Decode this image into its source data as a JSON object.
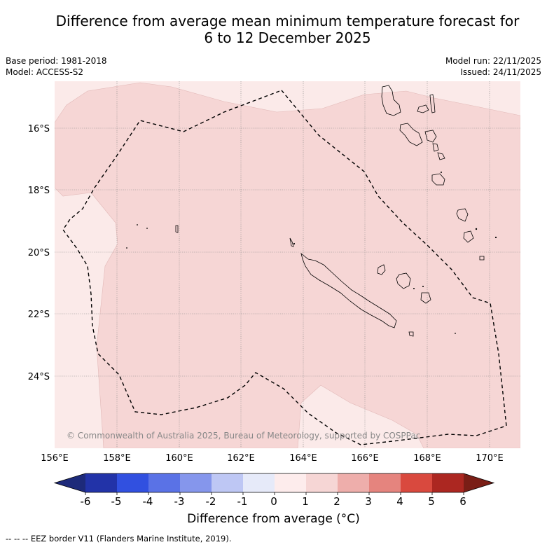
{
  "title": {
    "line1": "Difference from average mean minimum temperature forecast for",
    "line2": "6 to 12 December 2025"
  },
  "meta": {
    "base_period": "Base period: 1981-2018",
    "model": "Model: ACCESS-S2",
    "model_run": "Model run: 22/11/2025",
    "issued": "Issued: 24/11/2025"
  },
  "map": {
    "lon_labels": [
      "156°E",
      "158°E",
      "160°E",
      "162°E",
      "164°E",
      "166°E",
      "168°E",
      "170°E"
    ],
    "lat_labels": [
      "16°S",
      "18°S",
      "20°S",
      "22°S",
      "24°S"
    ],
    "copyright": "© Commonwealth of Australia 2025, Bureau of Meteorology, supported by COSPPac"
  },
  "colorbar": {
    "ticks": [
      "-6",
      "-5",
      "-4",
      "-3",
      "-2",
      "-1",
      "0",
      "1",
      "2",
      "3",
      "4",
      "5",
      "6"
    ],
    "colors": [
      "#1d2a7a",
      "#2233a8",
      "#3150e0",
      "#5a72e6",
      "#8596ec",
      "#bec7f4",
      "#e6eaf9",
      "#fdecec",
      "#f6d6d5",
      "#eeaeab",
      "#e5847e",
      "#d9493e",
      "#ac2721",
      "#7a1e16"
    ],
    "label": "Difference from average (°C)"
  },
  "colors": {
    "light_pink": "#fbeae9",
    "pink": "#f6d6d5",
    "grid": "#888888"
  },
  "legend_note": "-- -- -- EEZ border V11 (Flanders Marine Institute, 2019)."
}
